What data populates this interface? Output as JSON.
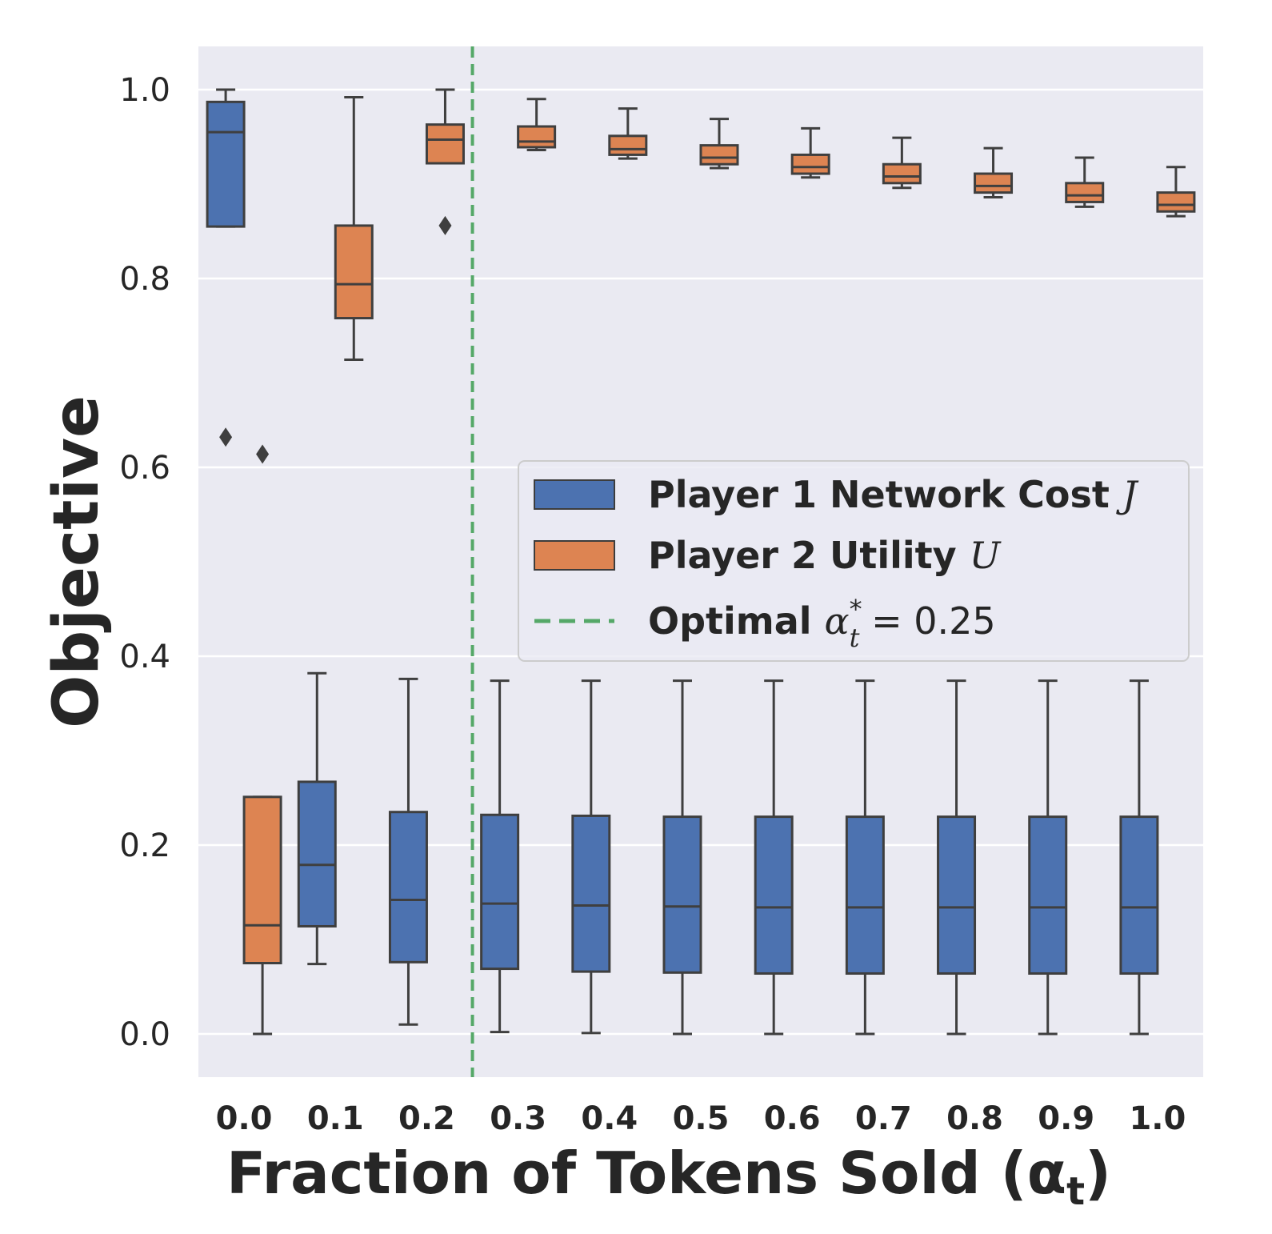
{
  "chart_data": {
    "type": "box",
    "xlabel": "Fraction of Tokens Sold (α",
    "xlabel_sub": "t",
    "xlabel_close": ")",
    "ylabel": "Objective",
    "ylim": [
      -0.05,
      1.05
    ],
    "grid": true,
    "legend_placement": "center-right",
    "categories": [
      "0.0",
      "0.1",
      "0.2",
      "0.3",
      "0.4",
      "0.5",
      "0.6",
      "0.7",
      "0.8",
      "0.9",
      "1.0"
    ],
    "y_ticks": [
      "0.0",
      "0.2",
      "0.4",
      "0.6",
      "0.8",
      "1.0"
    ],
    "y_tick_values": [
      0.0,
      0.2,
      0.4,
      0.6,
      0.8,
      1.0
    ],
    "series": [
      {
        "name": "Player 1 Network Cost J",
        "legend_label": "Player 1 Network Cost ",
        "legend_math": "J",
        "color": "#4c72b0",
        "boxes": [
          {
            "category": "0.0",
            "whislo": 0.855,
            "q1": 0.855,
            "med": 0.955,
            "q3": 0.987,
            "whishi": 1.0,
            "fliers": [
              0.632
            ]
          },
          {
            "category": "0.1",
            "whislo": 0.074,
            "q1": 0.114,
            "med": 0.179,
            "q3": 0.267,
            "whishi": 0.382,
            "fliers": []
          },
          {
            "category": "0.2",
            "whislo": 0.01,
            "q1": 0.076,
            "med": 0.142,
            "q3": 0.235,
            "whishi": 0.376,
            "fliers": []
          },
          {
            "category": "0.3",
            "whislo": 0.002,
            "q1": 0.069,
            "med": 0.138,
            "q3": 0.232,
            "whishi": 0.374,
            "fliers": []
          },
          {
            "category": "0.4",
            "whislo": 0.001,
            "q1": 0.066,
            "med": 0.136,
            "q3": 0.231,
            "whishi": 0.374,
            "fliers": []
          },
          {
            "category": "0.5",
            "whislo": 0.0,
            "q1": 0.065,
            "med": 0.135,
            "q3": 0.23,
            "whishi": 0.374,
            "fliers": []
          },
          {
            "category": "0.6",
            "whislo": 0.0,
            "q1": 0.064,
            "med": 0.134,
            "q3": 0.23,
            "whishi": 0.374,
            "fliers": []
          },
          {
            "category": "0.7",
            "whislo": 0.0,
            "q1": 0.064,
            "med": 0.134,
            "q3": 0.23,
            "whishi": 0.374,
            "fliers": []
          },
          {
            "category": "0.8",
            "whislo": 0.0,
            "q1": 0.064,
            "med": 0.134,
            "q3": 0.23,
            "whishi": 0.374,
            "fliers": []
          },
          {
            "category": "0.9",
            "whislo": 0.0,
            "q1": 0.064,
            "med": 0.134,
            "q3": 0.23,
            "whishi": 0.374,
            "fliers": []
          },
          {
            "category": "1.0",
            "whislo": 0.0,
            "q1": 0.064,
            "med": 0.134,
            "q3": 0.23,
            "whishi": 0.374,
            "fliers": []
          }
        ]
      },
      {
        "name": "Player 2 Utility U",
        "legend_label": "Player 2 Utility ",
        "legend_math": "U",
        "color": "#dd8452",
        "boxes": [
          {
            "category": "0.0",
            "whislo": 0.0,
            "q1": 0.075,
            "med": 0.115,
            "q3": 0.251,
            "whishi": 0.251,
            "fliers": [
              0.614
            ]
          },
          {
            "category": "0.1",
            "whislo": 0.714,
            "q1": 0.758,
            "med": 0.794,
            "q3": 0.856,
            "whishi": 0.992,
            "fliers": []
          },
          {
            "category": "0.2",
            "whislo": 0.922,
            "q1": 0.922,
            "med": 0.947,
            "q3": 0.963,
            "whishi": 1.0,
            "fliers": [
              0.856
            ]
          },
          {
            "category": "0.3",
            "whislo": 0.936,
            "q1": 0.939,
            "med": 0.945,
            "q3": 0.961,
            "whishi": 0.99,
            "fliers": []
          },
          {
            "category": "0.4",
            "whislo": 0.927,
            "q1": 0.931,
            "med": 0.937,
            "q3": 0.951,
            "whishi": 0.98,
            "fliers": []
          },
          {
            "category": "0.5",
            "whislo": 0.917,
            "q1": 0.921,
            "med": 0.928,
            "q3": 0.941,
            "whishi": 0.969,
            "fliers": []
          },
          {
            "category": "0.6",
            "whislo": 0.907,
            "q1": 0.911,
            "med": 0.918,
            "q3": 0.931,
            "whishi": 0.959,
            "fliers": []
          },
          {
            "category": "0.7",
            "whislo": 0.896,
            "q1": 0.901,
            "med": 0.908,
            "q3": 0.921,
            "whishi": 0.949,
            "fliers": []
          },
          {
            "category": "0.8",
            "whislo": 0.886,
            "q1": 0.891,
            "med": 0.898,
            "q3": 0.911,
            "whishi": 0.938,
            "fliers": []
          },
          {
            "category": "0.9",
            "whislo": 0.876,
            "q1": 0.881,
            "med": 0.888,
            "q3": 0.901,
            "whishi": 0.928,
            "fliers": []
          },
          {
            "category": "1.0",
            "whislo": 0.866,
            "q1": 0.871,
            "med": 0.878,
            "q3": 0.891,
            "whishi": 0.918,
            "fliers": []
          }
        ]
      }
    ],
    "reference_line": {
      "name": "Optimal α*t = 0.25",
      "legend_label": "Optimal ",
      "legend_math": "α",
      "legend_sup": "*",
      "legend_sub": "t",
      "legend_eq": " = 0.25",
      "x": 0.25,
      "color": "#55a868",
      "style": "dashed"
    }
  }
}
